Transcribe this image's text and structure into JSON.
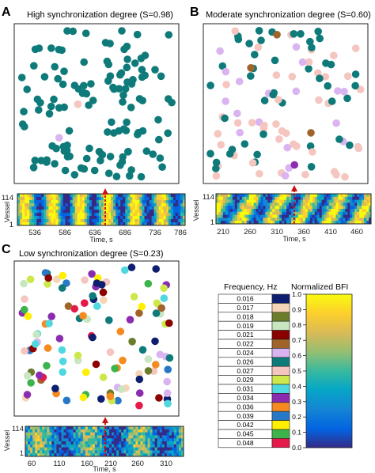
{
  "panels": [
    {
      "label": "A",
      "title": "High synchronization degree (S=0.98)",
      "vessel_label": "Vessel",
      "time_label": "Time, s",
      "y_ticks": [
        "114",
        "1"
      ],
      "x_ticks": [
        "536",
        "586",
        "636",
        "686",
        "736",
        "786"
      ],
      "marker": "red-dashed-time-marker-arrow"
    },
    {
      "label": "B",
      "title": "Moderate synchronization degree (S=0.60)",
      "vessel_label": "Vessel",
      "time_label": "Time, s",
      "y_ticks": [
        "114",
        "1"
      ],
      "x_ticks": [
        "210",
        "260",
        "310",
        "360",
        "410",
        "460"
      ],
      "marker": "red-dashed-time-marker-arrow"
    },
    {
      "label": "C",
      "title": "Low synchronization degree (S=0.23)",
      "vessel_label": "Vessel",
      "time_label": "Time, s",
      "y_ticks": [
        "114",
        "1"
      ],
      "x_ticks": [
        "60",
        "110",
        "160",
        "210",
        "260",
        "310"
      ],
      "marker": "red-dashed-time-marker-arrow"
    }
  ],
  "frequency_legend": {
    "title": "Frequency, Hz",
    "items": [
      {
        "value": "0.016",
        "color": "#0d1f6e"
      },
      {
        "value": "0.017",
        "color": "#f5d5b5"
      },
      {
        "value": "0.018",
        "color": "#6b7d2a"
      },
      {
        "value": "0.019",
        "color": "#c8e6c0"
      },
      {
        "value": "0.021",
        "color": "#8b0000"
      },
      {
        "value": "0.022",
        "color": "#a0642a"
      },
      {
        "value": "0.024",
        "color": "#dab4f0"
      },
      {
        "value": "0.026",
        "color": "#0f7a7a"
      },
      {
        "value": "0.027",
        "color": "#f5c5c0"
      },
      {
        "value": "0.029",
        "color": "#cde84a"
      },
      {
        "value": "0.031",
        "color": "#4fd8e0"
      },
      {
        "value": "0.034",
        "color": "#8b2cb0"
      },
      {
        "value": "0.036",
        "color": "#f58a20"
      },
      {
        "value": "0.039",
        "color": "#2878c8"
      },
      {
        "value": "0.042",
        "color": "#fff000"
      },
      {
        "value": "0.045",
        "color": "#3cb44b"
      },
      {
        "value": "0.048",
        "color": "#e6194b"
      }
    ]
  },
  "bfi_colorbar": {
    "title": "Normalized BFI",
    "ticks": [
      "1.0",
      "0.9",
      "0.8",
      "0.7",
      "0.6",
      "0.5",
      "0.4",
      "0.3",
      "0.2",
      "0.1",
      "0.0"
    ]
  }
}
